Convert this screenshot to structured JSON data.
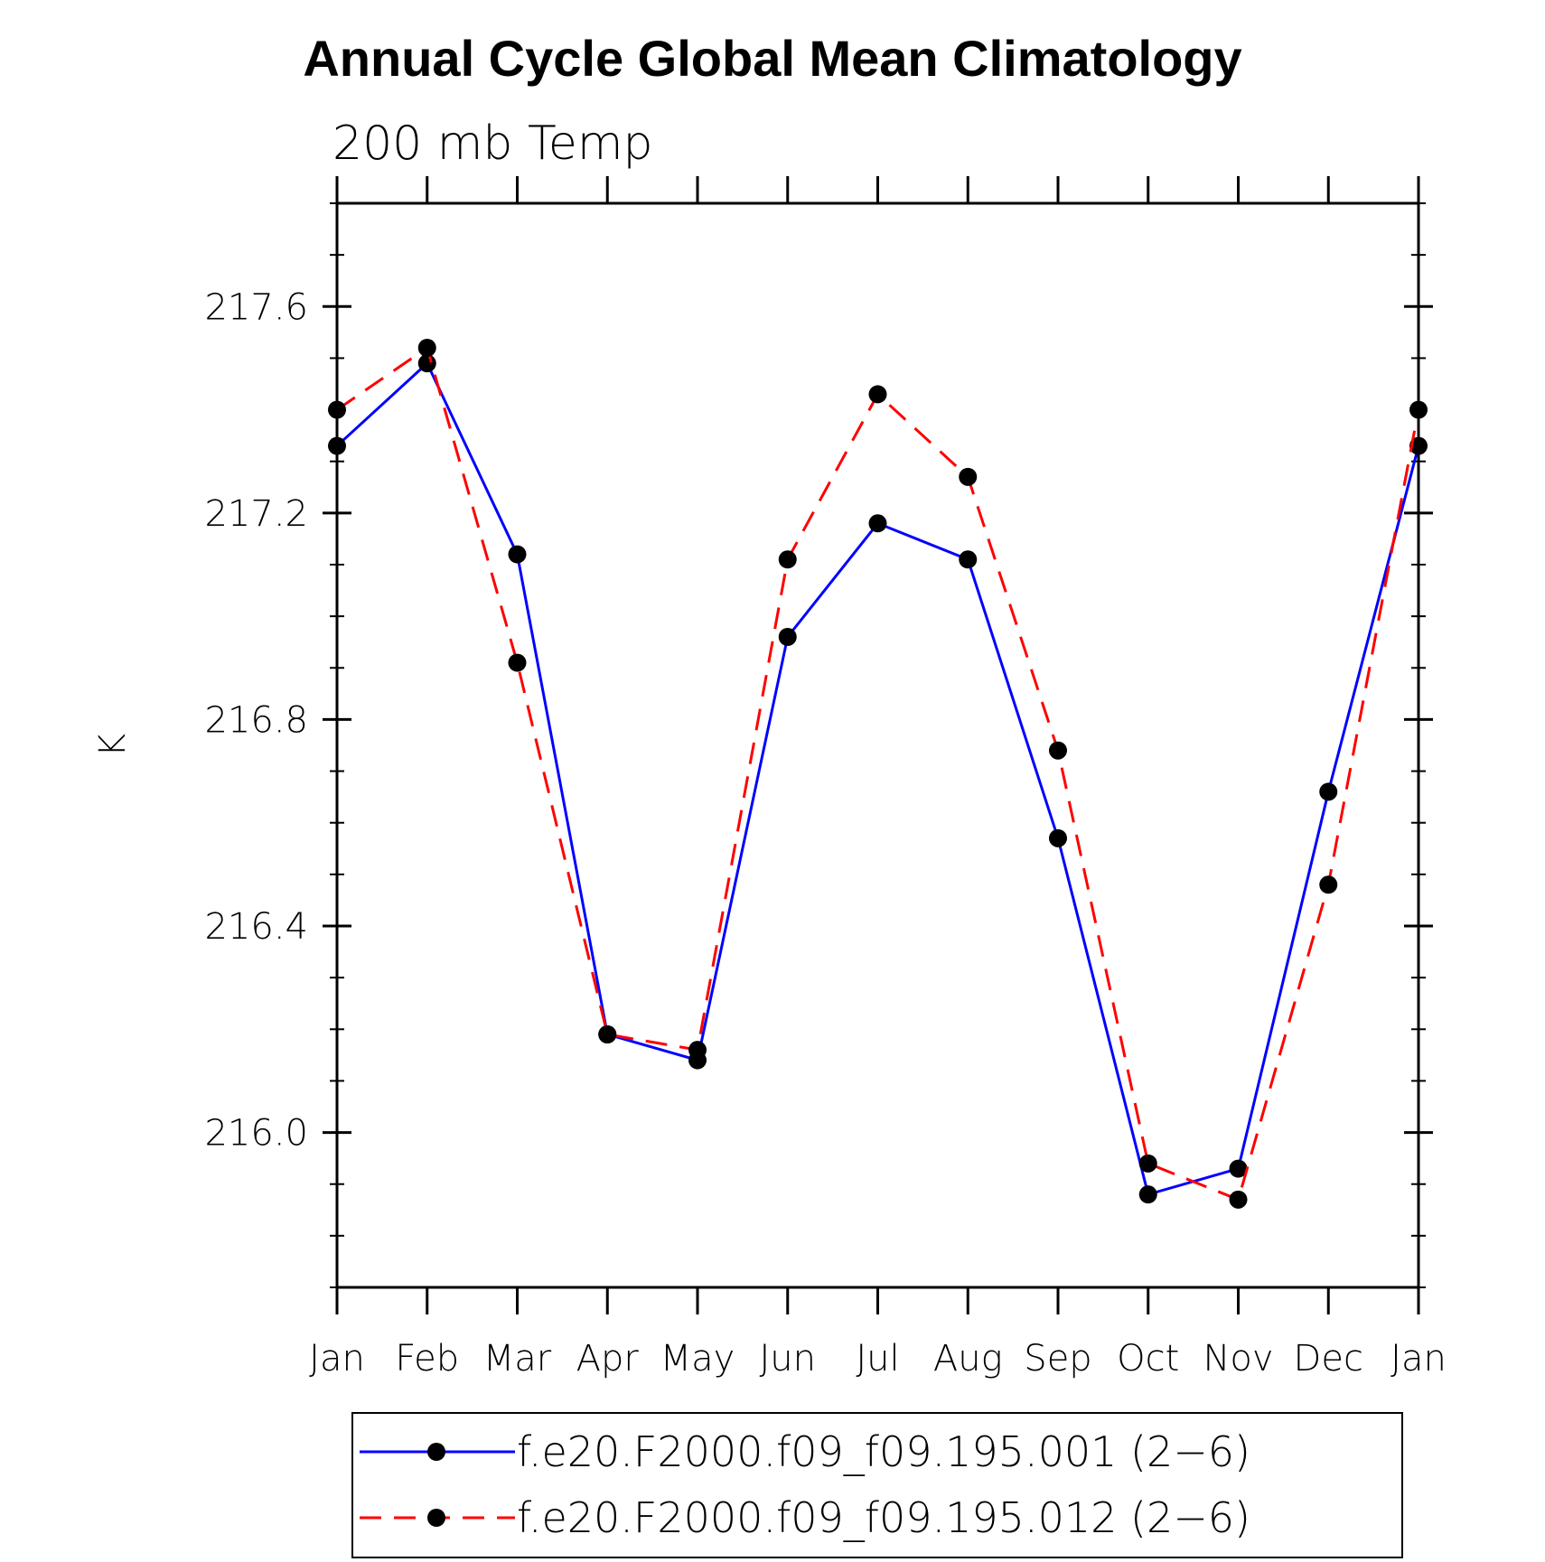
{
  "chart_data": {
    "type": "line",
    "title": "Annual Cycle Global Mean Climatology",
    "subtitle": "200 mb Temp",
    "xlabel": "",
    "ylabel": "K",
    "categories": [
      "Jan",
      "Feb",
      "Mar",
      "Apr",
      "May",
      "Jun",
      "Jul",
      "Aug",
      "Sep",
      "Oct",
      "Nov",
      "Dec",
      "Jan"
    ],
    "ylim": [
      215.7,
      217.8
    ],
    "yticks": [
      216.0,
      216.4,
      216.8,
      217.2,
      217.6
    ],
    "ytick_labels": [
      "216.0",
      "216.4",
      "216.8",
      "217.2",
      "217.6"
    ],
    "series": [
      {
        "name": "f.e20.F2000.f09_f09.195.001 (2−6)",
        "color": "#0000ff",
        "style": "solid",
        "values": [
          217.33,
          217.49,
          217.12,
          216.19,
          216.14,
          216.96,
          217.18,
          217.11,
          216.57,
          215.88,
          215.93,
          216.66,
          217.33
        ]
      },
      {
        "name": "f.e20.F2000.f09_f09.195.012 (2−6)",
        "color": "#ff0000",
        "style": "dashed",
        "values": [
          217.4,
          217.52,
          216.91,
          216.19,
          216.16,
          217.11,
          217.43,
          217.27,
          216.74,
          215.94,
          215.87,
          216.48,
          217.4
        ]
      }
    ],
    "legend_position": "bottom"
  }
}
